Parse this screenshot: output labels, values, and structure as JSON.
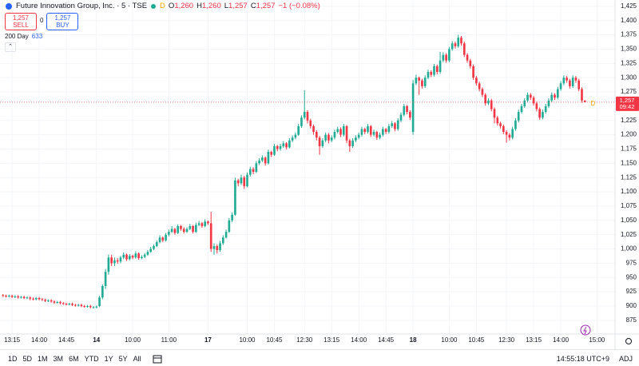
{
  "header": {
    "title": "Future Innovation Group, Inc. · 5 · TSE",
    "badge": "D",
    "open_key": "O",
    "open": "1,260",
    "high_key": "H",
    "high": "1,260",
    "low_key": "L",
    "low": "1,257",
    "close_key": "C",
    "close": "1,257",
    "change": "−1 (−0.08%)",
    "sell_price": "1,257",
    "sell": "SELL",
    "spread": "0",
    "buy_price": "1,257",
    "buy": "BUY",
    "ma_label": "200 Day",
    "ma_value": "633"
  },
  "price_label": {
    "price": "1,257",
    "countdown": "09:42",
    "marker": "D"
  },
  "toolbar": {
    "ranges": [
      "1D",
      "5D",
      "1M",
      "3M",
      "6M",
      "YTD",
      "1Y",
      "5Y",
      "All"
    ],
    "clock": "14:55:18 UTC+9",
    "adj": "ADJ"
  },
  "chart_data": {
    "type": "candlestick",
    "up_color": "#22ab94",
    "down_color": "#f23645",
    "grid": true,
    "xlim": [
      -1,
      203
    ],
    "ylim": [
      851,
      1436
    ],
    "yticks": [
      875,
      900,
      925,
      950,
      975,
      {
        "value": 1000,
        "label": "1,000"
      },
      {
        "value": 1025,
        "label": "1,025"
      },
      {
        "value": 1050,
        "label": "1,050"
      },
      {
        "value": 1075,
        "label": "1,075"
      },
      {
        "value": 1100,
        "label": "1,100"
      },
      {
        "value": 1125,
        "label": "1,125"
      },
      {
        "value": 1150,
        "label": "1,150"
      },
      {
        "value": 1175,
        "label": "1,175"
      },
      {
        "value": 1200,
        "label": "1,200"
      },
      {
        "value": 1225,
        "label": "1,225"
      },
      {
        "value": 1250,
        "label": "1,250"
      },
      {
        "value": 1275,
        "label": "1,275"
      },
      {
        "value": 1300,
        "label": "1,300"
      },
      {
        "value": 1325,
        "label": "1,325"
      },
      {
        "value": 1350,
        "label": "1,350"
      },
      {
        "value": 1375,
        "label": "1,375"
      },
      {
        "value": 1400,
        "label": "1,400"
      },
      {
        "value": 1425,
        "label": "1,425"
      }
    ],
    "xticks": [
      {
        "value": 3,
        "label": "13:15"
      },
      {
        "value": 12,
        "label": "14:00"
      },
      {
        "value": 21,
        "label": "14:45"
      },
      {
        "value": 31,
        "label": "14"
      },
      {
        "value": 43,
        "label": "10:00"
      },
      {
        "value": 55,
        "label": "11:00"
      },
      {
        "value": 68,
        "label": "17"
      },
      {
        "value": 81,
        "label": "10:00"
      },
      {
        "value": 90,
        "label": "10:45"
      },
      {
        "value": 100,
        "label": "12:30"
      },
      {
        "value": 109,
        "label": "13:15"
      },
      {
        "value": 118,
        "label": "14:00"
      },
      {
        "value": 127,
        "label": "14:45"
      },
      {
        "value": 136,
        "label": "18"
      },
      {
        "value": 148,
        "label": "10:00"
      },
      {
        "value": 157,
        "label": "10:45"
      },
      {
        "value": 167,
        "label": "12:30"
      },
      {
        "value": 176,
        "label": "13:15"
      },
      {
        "value": 185,
        "label": "14:00"
      },
      {
        "value": 197,
        "label": "15:00"
      }
    ],
    "candles": [
      [
        919,
        921,
        916,
        918
      ],
      [
        918,
        920,
        915,
        917
      ],
      [
        917,
        920,
        915,
        918
      ],
      [
        918,
        920,
        914,
        916
      ],
      [
        916,
        919,
        914,
        917
      ],
      [
        917,
        919,
        913,
        915
      ],
      [
        915,
        918,
        913,
        916
      ],
      [
        916,
        918,
        912,
        914
      ],
      [
        914,
        917,
        912,
        915
      ],
      [
        915,
        917,
        910,
        913
      ],
      [
        913,
        915,
        910,
        912
      ],
      [
        912,
        916,
        910,
        914
      ],
      [
        914,
        916,
        910,
        912
      ],
      [
        912,
        914,
        909,
        911
      ],
      [
        911,
        913,
        907,
        909
      ],
      [
        909,
        912,
        907,
        910
      ],
      [
        910,
        912,
        906,
        908
      ],
      [
        908,
        910,
        904,
        906
      ],
      [
        906,
        909,
        904,
        907
      ],
      [
        907,
        909,
        903,
        905
      ],
      [
        905,
        907,
        902,
        904
      ],
      [
        904,
        906,
        901,
        903
      ],
      [
        903,
        906,
        901,
        904
      ],
      [
        904,
        906,
        900,
        902
      ],
      [
        902,
        904,
        899,
        901
      ],
      [
        901,
        904,
        899,
        902
      ],
      [
        902,
        904,
        898,
        900
      ],
      [
        900,
        902,
        897,
        899
      ],
      [
        899,
        902,
        897,
        900
      ],
      [
        900,
        902,
        896,
        898
      ],
      [
        898,
        900,
        896,
        898
      ],
      [
        898,
        901,
        896,
        899
      ],
      [
        900,
        918,
        898,
        915
      ],
      [
        915,
        938,
        912,
        935
      ],
      [
        935,
        965,
        930,
        960
      ],
      [
        960,
        990,
        955,
        985
      ],
      [
        985,
        990,
        970,
        975
      ],
      [
        975,
        985,
        970,
        980
      ],
      [
        980,
        984,
        974,
        978
      ],
      [
        978,
        988,
        975,
        985
      ],
      [
        985,
        994,
        982,
        990
      ],
      [
        990,
        992,
        979,
        982
      ],
      [
        982,
        991,
        980,
        988
      ],
      [
        988,
        990,
        982,
        985
      ],
      [
        985,
        996,
        983,
        992
      ],
      [
        992,
        994,
        981,
        984
      ],
      [
        984,
        989,
        982,
        986
      ],
      [
        986,
        993,
        984,
        990
      ],
      [
        990,
        998,
        988,
        995
      ],
      [
        995,
        1004,
        993,
        1000
      ],
      [
        1000,
        1008,
        998,
        1005
      ],
      [
        1005,
        1015,
        1003,
        1012
      ],
      [
        1012,
        1024,
        1010,
        1020
      ],
      [
        1020,
        1022,
        1012,
        1015
      ],
      [
        1015,
        1028,
        1013,
        1025
      ],
      [
        1025,
        1034,
        1022,
        1030
      ],
      [
        1030,
        1040,
        1028,
        1035
      ],
      [
        1035,
        1037,
        1025,
        1028
      ],
      [
        1028,
        1043,
        1026,
        1040
      ],
      [
        1040,
        1042,
        1032,
        1035
      ],
      [
        1035,
        1038,
        1027,
        1030
      ],
      [
        1030,
        1038,
        1028,
        1035
      ],
      [
        1035,
        1044,
        1033,
        1040
      ],
      [
        1040,
        1042,
        1027,
        1030
      ],
      [
        1030,
        1046,
        1028,
        1042
      ],
      [
        1042,
        1049,
        1040,
        1045
      ],
      [
        1045,
        1047,
        1037,
        1040
      ],
      [
        1040,
        1052,
        1038,
        1048
      ],
      [
        1048,
        1050,
        1042,
        1045
      ],
      [
        1045,
        1065,
        995,
        1000
      ],
      [
        1000,
        1010,
        990,
        1005
      ],
      [
        1005,
        1008,
        992,
        998
      ],
      [
        998,
        1014,
        995,
        1010
      ],
      [
        1010,
        1024,
        1007,
        1020
      ],
      [
        1020,
        1034,
        1018,
        1030
      ],
      [
        1030,
        1054,
        1028,
        1050
      ],
      [
        1050,
        1064,
        1047,
        1060
      ],
      [
        1060,
        1125,
        1058,
        1120
      ],
      [
        1120,
        1123,
        1110,
        1115
      ],
      [
        1115,
        1130,
        1112,
        1125
      ],
      [
        1125,
        1128,
        1105,
        1110
      ],
      [
        1110,
        1134,
        1108,
        1130
      ],
      [
        1130,
        1144,
        1127,
        1140
      ],
      [
        1140,
        1143,
        1131,
        1135
      ],
      [
        1135,
        1154,
        1133,
        1150
      ],
      [
        1150,
        1159,
        1147,
        1155
      ],
      [
        1155,
        1164,
        1152,
        1160
      ],
      [
        1160,
        1162,
        1146,
        1150
      ],
      [
        1150,
        1174,
        1148,
        1170
      ],
      [
        1170,
        1172,
        1161,
        1165
      ],
      [
        1165,
        1184,
        1163,
        1180
      ],
      [
        1180,
        1182,
        1171,
        1175
      ],
      [
        1175,
        1184,
        1172,
        1180
      ],
      [
        1180,
        1189,
        1177,
        1185
      ],
      [
        1185,
        1187,
        1174,
        1178
      ],
      [
        1178,
        1194,
        1176,
        1190
      ],
      [
        1190,
        1199,
        1187,
        1195
      ],
      [
        1195,
        1204,
        1192,
        1200
      ],
      [
        1200,
        1219,
        1198,
        1215
      ],
      [
        1215,
        1234,
        1212,
        1230
      ],
      [
        1230,
        1278,
        1227,
        1240
      ],
      [
        1240,
        1243,
        1220,
        1225
      ],
      [
        1225,
        1228,
        1211,
        1215
      ],
      [
        1215,
        1218,
        1200,
        1205
      ],
      [
        1205,
        1208,
        1190,
        1195
      ],
      [
        1195,
        1198,
        1165,
        1180
      ],
      [
        1180,
        1194,
        1177,
        1190
      ],
      [
        1190,
        1204,
        1187,
        1200
      ],
      [
        1200,
        1203,
        1185,
        1190
      ],
      [
        1190,
        1199,
        1187,
        1195
      ],
      [
        1195,
        1209,
        1192,
        1205
      ],
      [
        1205,
        1214,
        1202,
        1210
      ],
      [
        1210,
        1213,
        1196,
        1200
      ],
      [
        1200,
        1219,
        1197,
        1215
      ],
      [
        1215,
        1217,
        1185,
        1190
      ],
      [
        1190,
        1193,
        1170,
        1180
      ],
      [
        1180,
        1194,
        1177,
        1190
      ],
      [
        1190,
        1199,
        1187,
        1195
      ],
      [
        1195,
        1204,
        1192,
        1200
      ],
      [
        1200,
        1214,
        1197,
        1210
      ],
      [
        1210,
        1212,
        1201,
        1205
      ],
      [
        1205,
        1219,
        1202,
        1215
      ],
      [
        1215,
        1217,
        1196,
        1200
      ],
      [
        1200,
        1209,
        1197,
        1205
      ],
      [
        1205,
        1207,
        1191,
        1195
      ],
      [
        1195,
        1204,
        1192,
        1200
      ],
      [
        1200,
        1214,
        1197,
        1210
      ],
      [
        1210,
        1212,
        1201,
        1205
      ],
      [
        1205,
        1219,
        1202,
        1215
      ],
      [
        1215,
        1224,
        1212,
        1220
      ],
      [
        1220,
        1222,
        1206,
        1210
      ],
      [
        1210,
        1229,
        1207,
        1225
      ],
      [
        1225,
        1239,
        1222,
        1235
      ],
      [
        1235,
        1254,
        1232,
        1250
      ],
      [
        1250,
        1252,
        1236,
        1240
      ],
      [
        1240,
        1243,
        1226,
        1230
      ],
      [
        1205,
        1296,
        1200,
        1290
      ],
      [
        1290,
        1305,
        1287,
        1300
      ],
      [
        1300,
        1302,
        1270,
        1295
      ],
      [
        1295,
        1298,
        1281,
        1285
      ],
      [
        1285,
        1304,
        1282,
        1300
      ],
      [
        1300,
        1314,
        1297,
        1310
      ],
      [
        1310,
        1313,
        1301,
        1305
      ],
      [
        1305,
        1324,
        1302,
        1320
      ],
      [
        1320,
        1323,
        1306,
        1310
      ],
      [
        1310,
        1345,
        1307,
        1330
      ],
      [
        1330,
        1344,
        1327,
        1340
      ],
      [
        1340,
        1343,
        1326,
        1330
      ],
      [
        1330,
        1354,
        1327,
        1350
      ],
      [
        1350,
        1364,
        1347,
        1360
      ],
      [
        1360,
        1363,
        1351,
        1355
      ],
      [
        1355,
        1375,
        1352,
        1370
      ],
      [
        1370,
        1373,
        1356,
        1360
      ],
      [
        1360,
        1363,
        1336,
        1340
      ],
      [
        1340,
        1343,
        1326,
        1330
      ],
      [
        1330,
        1333,
        1316,
        1320
      ],
      [
        1320,
        1323,
        1296,
        1300
      ],
      [
        1300,
        1303,
        1286,
        1290
      ],
      [
        1290,
        1293,
        1276,
        1280
      ],
      [
        1280,
        1283,
        1266,
        1270
      ],
      [
        1270,
        1273,
        1251,
        1255
      ],
      [
        1255,
        1264,
        1252,
        1260
      ],
      [
        1260,
        1263,
        1241,
        1245
      ],
      [
        1245,
        1248,
        1220,
        1230
      ],
      [
        1230,
        1233,
        1216,
        1220
      ],
      [
        1220,
        1223,
        1211,
        1215
      ],
      [
        1215,
        1218,
        1201,
        1205
      ],
      [
        1205,
        1208,
        1186,
        1200
      ],
      [
        1200,
        1203,
        1190,
        1195
      ],
      [
        1195,
        1214,
        1192,
        1210
      ],
      [
        1210,
        1229,
        1207,
        1225
      ],
      [
        1225,
        1244,
        1222,
        1240
      ],
      [
        1240,
        1254,
        1237,
        1250
      ],
      [
        1250,
        1264,
        1247,
        1260
      ],
      [
        1260,
        1274,
        1257,
        1270
      ],
      [
        1270,
        1273,
        1261,
        1265
      ],
      [
        1265,
        1268,
        1251,
        1255
      ],
      [
        1255,
        1258,
        1241,
        1245
      ],
      [
        1245,
        1248,
        1226,
        1230
      ],
      [
        1230,
        1244,
        1227,
        1240
      ],
      [
        1240,
        1254,
        1237,
        1250
      ],
      [
        1250,
        1264,
        1247,
        1260
      ],
      [
        1260,
        1274,
        1257,
        1270
      ],
      [
        1270,
        1273,
        1261,
        1265
      ],
      [
        1265,
        1284,
        1262,
        1280
      ],
      [
        1280,
        1294,
        1277,
        1290
      ],
      [
        1290,
        1304,
        1287,
        1300
      ],
      [
        1300,
        1303,
        1291,
        1295
      ],
      [
        1295,
        1298,
        1281,
        1285
      ],
      [
        1285,
        1304,
        1282,
        1300
      ],
      [
        1300,
        1303,
        1291,
        1295
      ],
      [
        1295,
        1298,
        1276,
        1280
      ],
      [
        1280,
        1283,
        1256,
        1260
      ],
      [
        1260,
        1260,
        1257,
        1257
      ]
    ]
  }
}
